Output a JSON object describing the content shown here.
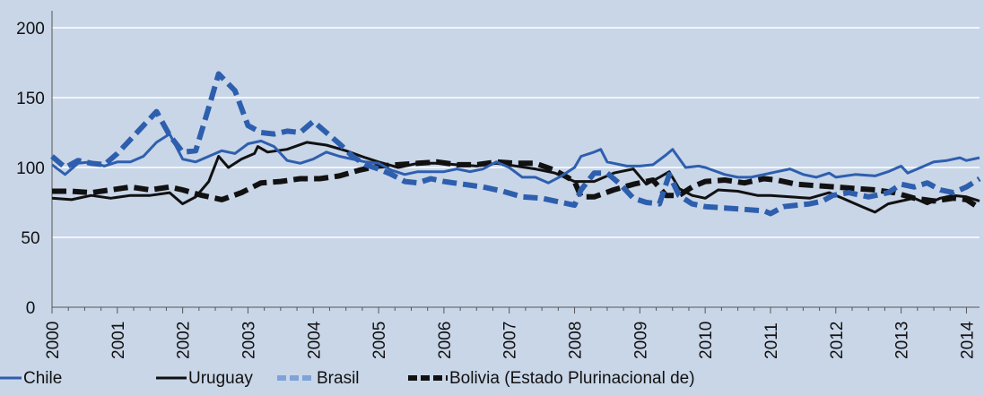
{
  "chart_data": {
    "type": "line",
    "ylim": [
      0,
      200
    ],
    "yticks": [
      0,
      50,
      100,
      150,
      200
    ],
    "xlim": [
      2000,
      2014.2
    ],
    "xticks": [
      "2000",
      "2001",
      "2002",
      "2003",
      "2004",
      "2005",
      "2006",
      "2007",
      "2008",
      "2009",
      "2010",
      "2011",
      "2012",
      "2013",
      "2014"
    ],
    "grid": "horizontal",
    "legend": "bottom",
    "series": [
      {
        "name": "Chile",
        "color": "#2e5fae",
        "style": "solid",
        "points": [
          [
            2000.0,
            102
          ],
          [
            2000.2,
            95
          ],
          [
            2000.4,
            103
          ],
          [
            2000.6,
            104
          ],
          [
            2000.8,
            101
          ],
          [
            2001.0,
            104
          ],
          [
            2001.2,
            104
          ],
          [
            2001.4,
            108
          ],
          [
            2001.6,
            118
          ],
          [
            2001.8,
            124
          ],
          [
            2002.0,
            106
          ],
          [
            2002.2,
            104
          ],
          [
            2002.4,
            108
          ],
          [
            2002.6,
            112
          ],
          [
            2002.8,
            110
          ],
          [
            2003.0,
            117
          ],
          [
            2003.2,
            119
          ],
          [
            2003.4,
            115
          ],
          [
            2003.6,
            105
          ],
          [
            2003.8,
            103
          ],
          [
            2004.0,
            106
          ],
          [
            2004.2,
            111
          ],
          [
            2004.4,
            108
          ],
          [
            2004.6,
            106
          ],
          [
            2004.8,
            104
          ],
          [
            2005.0,
            103
          ],
          [
            2005.2,
            98
          ],
          [
            2005.4,
            95
          ],
          [
            2005.6,
            97
          ],
          [
            2005.8,
            97
          ],
          [
            2006.0,
            97
          ],
          [
            2006.2,
            99
          ],
          [
            2006.4,
            97
          ],
          [
            2006.6,
            99
          ],
          [
            2006.8,
            104
          ],
          [
            2007.0,
            100
          ],
          [
            2007.2,
            93
          ],
          [
            2007.4,
            93
          ],
          [
            2007.6,
            89
          ],
          [
            2007.8,
            94
          ],
          [
            2008.0,
            100
          ],
          [
            2008.1,
            108
          ],
          [
            2008.3,
            111
          ],
          [
            2008.4,
            113
          ],
          [
            2008.5,
            104
          ],
          [
            2008.8,
            101
          ],
          [
            2009.0,
            101
          ],
          [
            2009.2,
            102
          ],
          [
            2009.4,
            109
          ],
          [
            2009.5,
            113
          ],
          [
            2009.7,
            100
          ],
          [
            2009.9,
            101
          ],
          [
            2010.0,
            100
          ],
          [
            2010.3,
            95
          ],
          [
            2010.5,
            93
          ],
          [
            2010.7,
            93
          ],
          [
            2010.9,
            95
          ],
          [
            2011.1,
            97
          ],
          [
            2011.3,
            99
          ],
          [
            2011.5,
            95
          ],
          [
            2011.7,
            93
          ],
          [
            2011.9,
            96
          ],
          [
            2012.0,
            93
          ],
          [
            2012.3,
            95
          ],
          [
            2012.6,
            94
          ],
          [
            2012.8,
            97
          ],
          [
            2013.0,
            101
          ],
          [
            2013.1,
            96
          ],
          [
            2013.3,
            100
          ],
          [
            2013.5,
            104
          ],
          [
            2013.7,
            105
          ],
          [
            2013.9,
            107
          ],
          [
            2014.0,
            105
          ],
          [
            2014.2,
            107
          ]
        ]
      },
      {
        "name": "Uruguay",
        "color": "#111111",
        "style": "solid",
        "points": [
          [
            2000.0,
            78
          ],
          [
            2000.3,
            77
          ],
          [
            2000.6,
            80
          ],
          [
            2000.9,
            78
          ],
          [
            2001.2,
            80
          ],
          [
            2001.5,
            80
          ],
          [
            2001.8,
            82
          ],
          [
            2002.0,
            74
          ],
          [
            2002.2,
            79
          ],
          [
            2002.4,
            90
          ],
          [
            2002.55,
            108
          ],
          [
            2002.7,
            100
          ],
          [
            2002.9,
            106
          ],
          [
            2003.1,
            110
          ],
          [
            2003.15,
            115
          ],
          [
            2003.3,
            111
          ],
          [
            2003.6,
            113
          ],
          [
            2003.9,
            118
          ],
          [
            2004.2,
            116
          ],
          [
            2004.5,
            112
          ],
          [
            2004.8,
            107
          ],
          [
            2005.0,
            104
          ],
          [
            2005.3,
            100
          ],
          [
            2005.6,
            103
          ],
          [
            2005.9,
            103
          ],
          [
            2006.2,
            102
          ],
          [
            2006.5,
            101
          ],
          [
            2006.8,
            103
          ],
          [
            2007.1,
            101
          ],
          [
            2007.4,
            99
          ],
          [
            2007.7,
            96
          ],
          [
            2008.0,
            90
          ],
          [
            2008.3,
            90
          ],
          [
            2008.6,
            96
          ],
          [
            2008.9,
            99
          ],
          [
            2009.1,
            88
          ],
          [
            2009.3,
            93
          ],
          [
            2009.45,
            97
          ],
          [
            2009.6,
            85
          ],
          [
            2009.8,
            80
          ],
          [
            2010.0,
            78
          ],
          [
            2010.2,
            84
          ],
          [
            2010.5,
            83
          ],
          [
            2010.8,
            80
          ],
          [
            2011.0,
            80
          ],
          [
            2011.3,
            79
          ],
          [
            2011.6,
            78
          ],
          [
            2011.9,
            82
          ],
          [
            2012.1,
            78
          ],
          [
            2012.4,
            72
          ],
          [
            2012.6,
            68
          ],
          [
            2012.8,
            74
          ],
          [
            2013.0,
            76
          ],
          [
            2013.2,
            78
          ],
          [
            2013.4,
            74
          ],
          [
            2013.6,
            78
          ],
          [
            2013.8,
            80
          ],
          [
            2014.0,
            79
          ],
          [
            2014.2,
            76
          ]
        ]
      },
      {
        "name": "Brasil",
        "color": "#2e5fae",
        "style": "dashed",
        "points": [
          [
            2000.0,
            108
          ],
          [
            2000.2,
            100
          ],
          [
            2000.4,
            105
          ],
          [
            2000.6,
            103
          ],
          [
            2000.8,
            102
          ],
          [
            2001.0,
            110
          ],
          [
            2001.2,
            120
          ],
          [
            2001.4,
            130
          ],
          [
            2001.6,
            140
          ],
          [
            2001.8,
            123
          ],
          [
            2002.0,
            111
          ],
          [
            2002.2,
            112
          ],
          [
            2002.4,
            143
          ],
          [
            2002.55,
            167
          ],
          [
            2002.8,
            155
          ],
          [
            2003.0,
            130
          ],
          [
            2003.2,
            125
          ],
          [
            2003.4,
            124
          ],
          [
            2003.6,
            126
          ],
          [
            2003.8,
            125
          ],
          [
            2004.0,
            133
          ],
          [
            2004.2,
            125
          ],
          [
            2004.4,
            117
          ],
          [
            2004.6,
            108
          ],
          [
            2004.8,
            102
          ],
          [
            2005.0,
            99
          ],
          [
            2005.2,
            95
          ],
          [
            2005.4,
            90
          ],
          [
            2005.6,
            89
          ],
          [
            2005.8,
            92
          ],
          [
            2006.0,
            90
          ],
          [
            2006.3,
            88
          ],
          [
            2006.6,
            86
          ],
          [
            2006.9,
            83
          ],
          [
            2007.2,
            79
          ],
          [
            2007.5,
            78
          ],
          [
            2007.8,
            75
          ],
          [
            2008.0,
            73
          ],
          [
            2008.1,
            84
          ],
          [
            2008.3,
            96
          ],
          [
            2008.5,
            96
          ],
          [
            2008.7,
            88
          ],
          [
            2008.9,
            78
          ],
          [
            2009.1,
            75
          ],
          [
            2009.3,
            74
          ],
          [
            2009.45,
            95
          ],
          [
            2009.6,
            80
          ],
          [
            2009.8,
            74
          ],
          [
            2010.0,
            72
          ],
          [
            2010.3,
            71
          ],
          [
            2010.6,
            70
          ],
          [
            2010.9,
            69
          ],
          [
            2011.0,
            67
          ],
          [
            2011.2,
            72
          ],
          [
            2011.4,
            73
          ],
          [
            2011.6,
            74
          ],
          [
            2011.8,
            76
          ],
          [
            2011.95,
            80
          ],
          [
            2012.2,
            82
          ],
          [
            2012.5,
            79
          ],
          [
            2012.8,
            82
          ],
          [
            2013.0,
            88
          ],
          [
            2013.2,
            86
          ],
          [
            2013.4,
            89
          ],
          [
            2013.6,
            84
          ],
          [
            2013.8,
            82
          ],
          [
            2014.0,
            86
          ],
          [
            2014.2,
            92
          ]
        ]
      },
      {
        "name": "Bolivia (Estado Plurinacional de)",
        "color": "#111111",
        "style": "dashed",
        "points": [
          [
            2000.0,
            83
          ],
          [
            2000.3,
            83
          ],
          [
            2000.6,
            82
          ],
          [
            2000.9,
            84
          ],
          [
            2001.2,
            86
          ],
          [
            2001.5,
            84
          ],
          [
            2001.8,
            86
          ],
          [
            2002.0,
            84
          ],
          [
            2002.3,
            80
          ],
          [
            2002.6,
            77
          ],
          [
            2002.9,
            82
          ],
          [
            2003.2,
            89
          ],
          [
            2003.5,
            90
          ],
          [
            2003.8,
            92
          ],
          [
            2004.1,
            92
          ],
          [
            2004.4,
            94
          ],
          [
            2004.7,
            98
          ],
          [
            2005.0,
            101
          ],
          [
            2005.3,
            102
          ],
          [
            2005.6,
            103
          ],
          [
            2005.9,
            104
          ],
          [
            2006.2,
            102
          ],
          [
            2006.5,
            102
          ],
          [
            2006.8,
            104
          ],
          [
            2007.1,
            103
          ],
          [
            2007.4,
            103
          ],
          [
            2007.7,
            98
          ],
          [
            2008.0,
            90
          ],
          [
            2008.1,
            79
          ],
          [
            2008.3,
            79
          ],
          [
            2008.6,
            84
          ],
          [
            2008.9,
            88
          ],
          [
            2009.2,
            91
          ],
          [
            2009.4,
            80
          ],
          [
            2009.6,
            80
          ],
          [
            2009.8,
            86
          ],
          [
            2010.0,
            90
          ],
          [
            2010.3,
            91
          ],
          [
            2010.6,
            89
          ],
          [
            2010.9,
            92
          ],
          [
            2011.1,
            91
          ],
          [
            2011.4,
            88
          ],
          [
            2011.7,
            87
          ],
          [
            2012.0,
            86
          ],
          [
            2012.3,
            85
          ],
          [
            2012.6,
            84
          ],
          [
            2012.9,
            82
          ],
          [
            2013.2,
            78
          ],
          [
            2013.5,
            76
          ],
          [
            2013.8,
            78
          ],
          [
            2014.0,
            77
          ],
          [
            2014.2,
            71
          ]
        ]
      }
    ]
  }
}
